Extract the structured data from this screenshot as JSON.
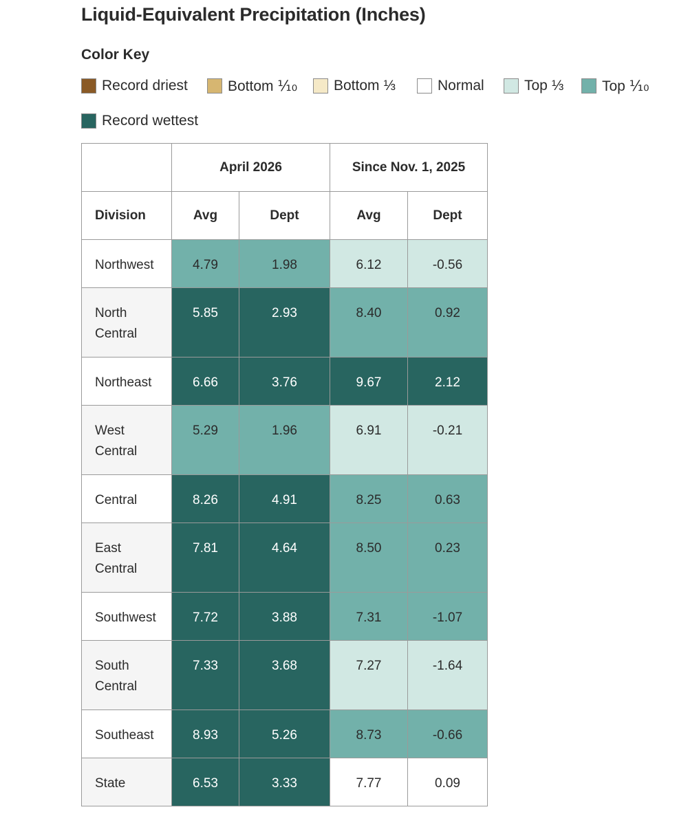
{
  "title": "Liquid-Equivalent Precipitation (Inches)",
  "color_key": {
    "heading": "Color Key",
    "items": [
      {
        "key": "record_driest",
        "label": "Record driest",
        "color": "#8a5a26"
      },
      {
        "key": "bottom_tenth",
        "label": "Bottom ⅒",
        "color": "#d6b671"
      },
      {
        "key": "bottom_third",
        "label": "Bottom ⅓",
        "color": "#f5e9c7"
      },
      {
        "key": "normal",
        "label": "Normal",
        "color": "#ffffff"
      },
      {
        "key": "top_third",
        "label": "Top ⅓",
        "color": "#d1e8e3"
      },
      {
        "key": "top_tenth",
        "label": "Top ⅒",
        "color": "#72b1aa"
      },
      {
        "key": "record_wettest",
        "label": "Record wettest",
        "color": "#286560"
      }
    ]
  },
  "table": {
    "group_headers": [
      "April 2026",
      "Since Nov. 1, 2025"
    ],
    "columns": [
      "Division",
      "Avg",
      "Dept",
      "Avg",
      "Dept"
    ],
    "rows": [
      {
        "division": "Northwest",
        "apr_avg": "4.79",
        "apr_dept": "1.98",
        "since_avg": "6.12",
        "since_dept": "-0.56",
        "classes": [
          "top_tenth",
          "top_tenth",
          "top_third",
          "top_third"
        ]
      },
      {
        "division": "North Central",
        "apr_avg": "5.85",
        "apr_dept": "2.93",
        "since_avg": "8.40",
        "since_dept": "0.92",
        "classes": [
          "record_wettest",
          "record_wettest",
          "top_tenth",
          "top_tenth"
        ]
      },
      {
        "division": "Northeast",
        "apr_avg": "6.66",
        "apr_dept": "3.76",
        "since_avg": "9.67",
        "since_dept": "2.12",
        "classes": [
          "record_wettest",
          "record_wettest",
          "record_wettest",
          "record_wettest"
        ]
      },
      {
        "division": "West Central",
        "apr_avg": "5.29",
        "apr_dept": "1.96",
        "since_avg": "6.91",
        "since_dept": "-0.21",
        "classes": [
          "top_tenth",
          "top_tenth",
          "top_third",
          "top_third"
        ]
      },
      {
        "division": "Central",
        "apr_avg": "8.26",
        "apr_dept": "4.91",
        "since_avg": "8.25",
        "since_dept": "0.63",
        "classes": [
          "record_wettest",
          "record_wettest",
          "top_tenth",
          "top_tenth"
        ]
      },
      {
        "division": "East Central",
        "apr_avg": "7.81",
        "apr_dept": "4.64",
        "since_avg": "8.50",
        "since_dept": "0.23",
        "classes": [
          "record_wettest",
          "record_wettest",
          "top_tenth",
          "top_tenth"
        ]
      },
      {
        "division": "Southwest",
        "apr_avg": "7.72",
        "apr_dept": "3.88",
        "since_avg": "7.31",
        "since_dept": "-1.07",
        "classes": [
          "record_wettest",
          "record_wettest",
          "top_tenth",
          "top_tenth"
        ]
      },
      {
        "division": "South Central",
        "apr_avg": "7.33",
        "apr_dept": "3.68",
        "since_avg": "7.27",
        "since_dept": "-1.64",
        "classes": [
          "record_wettest",
          "record_wettest",
          "top_third",
          "top_third"
        ]
      },
      {
        "division": "Southeast",
        "apr_avg": "8.93",
        "apr_dept": "5.26",
        "since_avg": "8.73",
        "since_dept": "-0.66",
        "classes": [
          "record_wettest",
          "record_wettest",
          "top_tenth",
          "top_tenth"
        ]
      },
      {
        "division": "State",
        "apr_avg": "6.53",
        "apr_dept": "3.33",
        "since_avg": "7.77",
        "since_dept": "0.09",
        "classes": [
          "record_wettest",
          "record_wettest",
          "normal",
          "normal"
        ]
      }
    ]
  }
}
